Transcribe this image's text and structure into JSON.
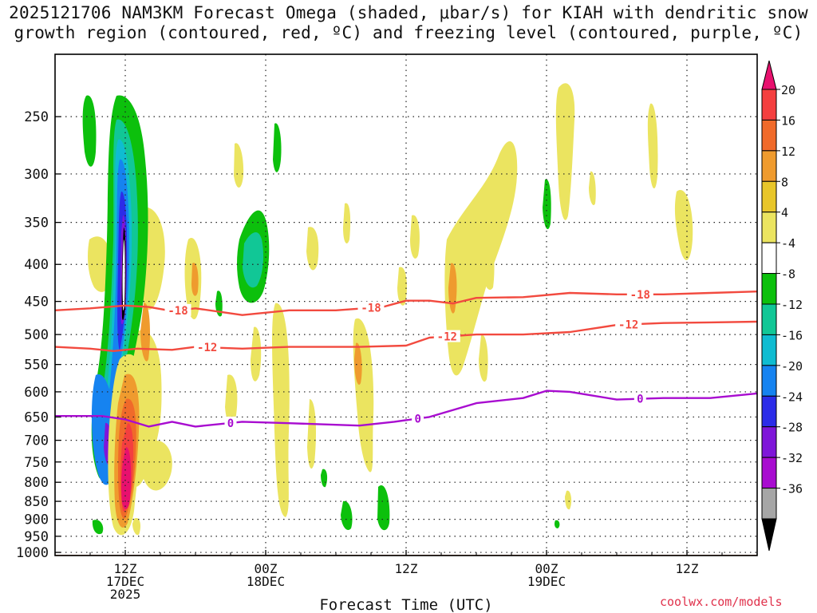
{
  "title_line1": "2025121706 NAM3KM Forecast Omega (shaded, μbar/s) for KIAH with dendritic snow",
  "title_line2": "growth region (contoured, red, ºC) and freezing level (contoured, purple, ºC)",
  "credit": "coolwx.com/models",
  "chart_data": {
    "type": "heatmap",
    "title": "2025121706 NAM3KM Forecast Omega (shaded, μbar/s) for KIAH with dendritic snow growth region (contoured, red, ºC) and freezing level (contoured, purple, ºC)",
    "xlabel": "Forecast Time (UTC)",
    "ylabel": "",
    "x_ticks": [
      {
        "hour": 6,
        "lines": [
          "12Z",
          "17DEC",
          "2025"
        ]
      },
      {
        "hour": 18,
        "lines": [
          "00Z",
          "18DEC"
        ]
      },
      {
        "hour": 30,
        "lines": [
          "12Z"
        ]
      },
      {
        "hour": 42,
        "lines": [
          "00Z",
          "19DEC"
        ]
      },
      {
        "hour": 54,
        "lines": [
          "12Z"
        ]
      }
    ],
    "xlim_hours": [
      0,
      60
    ],
    "y_ticks": [
      250,
      300,
      350,
      400,
      450,
      500,
      550,
      600,
      650,
      700,
      750,
      800,
      850,
      900,
      950,
      1000
    ],
    "ylim_hpa": [
      1010,
      205
    ],
    "grid": true,
    "colorbar": {
      "labels": [
        "20",
        "16",
        "12",
        "8",
        "4",
        "-4",
        "-8",
        "-12",
        "-16",
        "-20",
        "-24",
        "-28",
        "-32",
        "-36"
      ],
      "colors": [
        "#e8116e",
        "#f43f3f",
        "#f06a2a",
        "#ef9b2e",
        "#e8c62a",
        "#ebe460",
        "#ffffff",
        "#0cc00c",
        "#11c796",
        "#0fbcd1",
        "#1683f0",
        "#2c2ce8",
        "#7f16d9",
        "#a80cd0",
        "#a6a6a6",
        "#000000"
      ]
    },
    "contours": [
      {
        "label": "-18",
        "color": "#f24a3f",
        "points": [
          [
            0,
            463
          ],
          [
            3,
            460
          ],
          [
            6,
            456
          ],
          [
            8,
            458
          ],
          [
            10,
            464
          ],
          [
            12,
            460
          ],
          [
            16,
            470
          ],
          [
            20,
            463
          ],
          [
            24,
            463
          ],
          [
            28,
            458
          ],
          [
            30,
            449
          ],
          [
            32,
            449
          ],
          [
            34,
            453
          ],
          [
            36,
            445
          ],
          [
            40,
            444
          ],
          [
            44,
            438
          ],
          [
            48,
            440
          ],
          [
            52,
            440
          ],
          [
            56,
            438
          ],
          [
            60,
            436
          ]
        ],
        "label_hours": [
          10.5,
          27,
          50
        ]
      },
      {
        "label": "-12",
        "color": "#f24a3f",
        "points": [
          [
            0,
            520
          ],
          [
            3,
            523
          ],
          [
            5,
            527
          ],
          [
            7,
            523
          ],
          [
            10,
            525
          ],
          [
            12,
            520
          ],
          [
            16,
            523
          ],
          [
            20,
            520
          ],
          [
            26,
            520
          ],
          [
            30,
            518
          ],
          [
            32,
            505
          ],
          [
            36,
            500
          ],
          [
            40,
            500
          ],
          [
            44,
            496
          ],
          [
            48,
            485
          ],
          [
            52,
            482
          ],
          [
            56,
            481
          ],
          [
            60,
            480
          ]
        ],
        "label_hours": [
          13,
          33.5,
          49
        ]
      },
      {
        "label": "0",
        "color": "#a80cd0",
        "points": [
          [
            0,
            648
          ],
          [
            4,
            648
          ],
          [
            6,
            655
          ],
          [
            8,
            670
          ],
          [
            10,
            660
          ],
          [
            12,
            670
          ],
          [
            16,
            660
          ],
          [
            20,
            663
          ],
          [
            26,
            668
          ],
          [
            29,
            660
          ],
          [
            32,
            650
          ],
          [
            36,
            622
          ],
          [
            40,
            612
          ],
          [
            42,
            598
          ],
          [
            44,
            600
          ],
          [
            48,
            615
          ],
          [
            52,
            612
          ],
          [
            56,
            612
          ],
          [
            60,
            603
          ]
        ],
        "label_hours": [
          15,
          31,
          50
        ]
      }
    ],
    "terrain_color": "#a5562e"
  }
}
